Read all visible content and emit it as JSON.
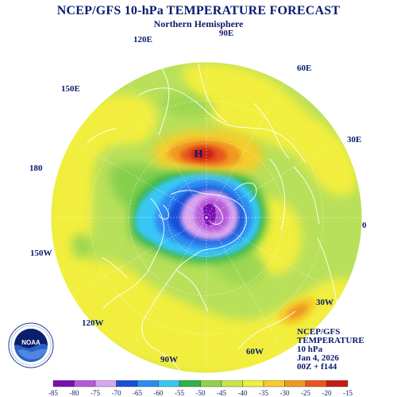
{
  "header": {
    "title": "NCEP/GFS 10-hPa TEMPERATURE FORECAST",
    "subtitle": "Northern Hemisphere"
  },
  "map": {
    "longitude_labels": [
      "90E",
      "60E",
      "30E",
      "0",
      "30W",
      "60W",
      "90W",
      "120W",
      "150W",
      "180",
      "150E",
      "120E"
    ],
    "high_marker": "H",
    "background_color": "#b8e05a"
  },
  "info_block": {
    "lines": [
      "NCEP/GFS",
      "TEMPERATURE",
      "10 hPa",
      "Jan 4, 2026",
      "00Z + f144"
    ]
  },
  "logo": {
    "name": "noaa-logo",
    "text": "NOAA",
    "ring_text": "NATIONAL OCEANIC AND ATMOSPHERIC ADMINISTRATION · U.S. DEPARTMENT OF COMMERCE"
  },
  "colorbar": {
    "ticks": [
      "-85",
      "-80",
      "-75",
      "-70",
      "-65",
      "-60",
      "-55",
      "-50",
      "-45",
      "-40",
      "-35",
      "-30",
      "-25",
      "-20",
      "-15"
    ],
    "colors": [
      "#7a0fb0",
      "#b45ad9",
      "#d9a6f0",
      "#1750d8",
      "#2d8cf0",
      "#38c7f5",
      "#2fb24a",
      "#8ed24a",
      "#c6e64a",
      "#eef03a",
      "#f4cd2c",
      "#f09a22",
      "#e8561c",
      "#c61a12"
    ]
  }
}
